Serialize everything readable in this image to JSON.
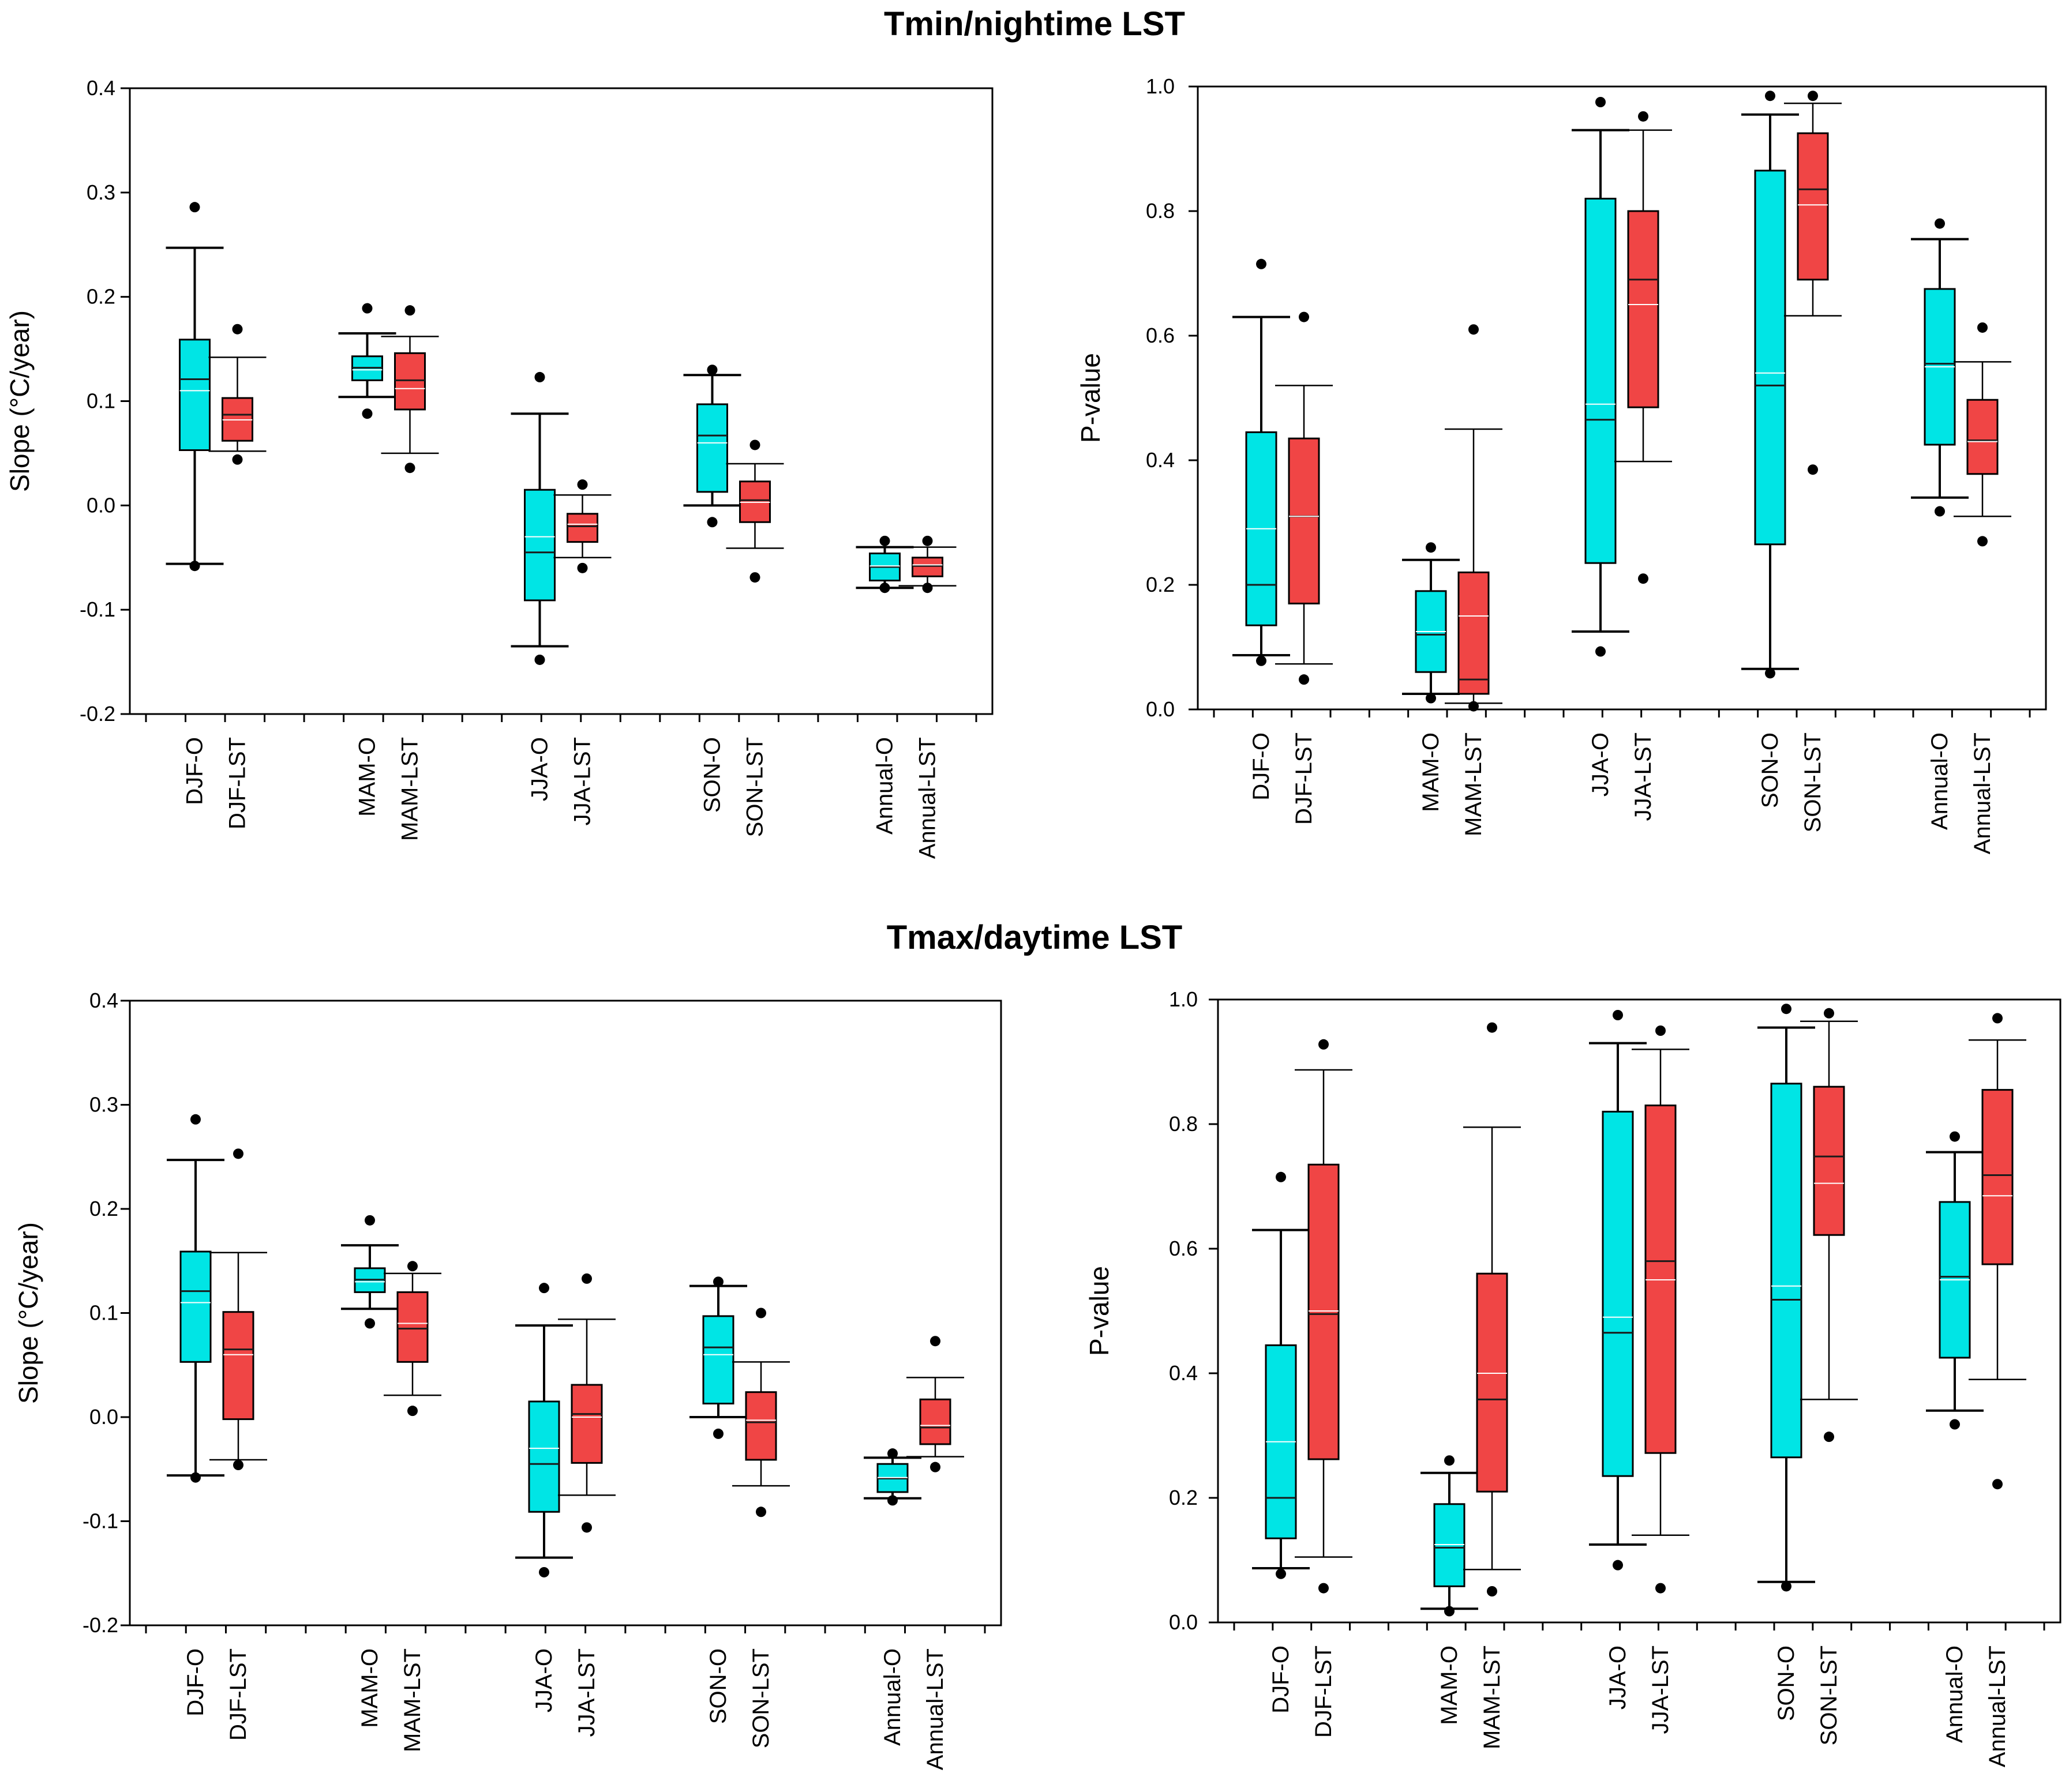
{
  "section_titles": [
    "Tmin/nightime LST",
    "Tmax/daytime LST"
  ],
  "colors": {
    "observed": "#00E5E5",
    "lst": "#F04545",
    "median": "#1A1A1A",
    "mean": "#FFFFFF",
    "outlier": "#000000",
    "axis": "#000000"
  },
  "chart_data": [
    {
      "type": "box",
      "section": "Tmin/nightime LST",
      "ylabel": "Slope (°C/year)",
      "xlabel": "",
      "ylim": [
        -0.2,
        0.4
      ],
      "yticks": [
        -0.2,
        -0.1,
        0.0,
        0.1,
        0.2,
        0.3,
        0.4
      ],
      "ytick_labels": [
        "-0.2",
        "-0.1",
        "0.0",
        "0.1",
        "0.2",
        "0.3",
        "0.4"
      ],
      "categories": [
        "DJF-O",
        "DJF-LST",
        "MAM-O",
        "MAM-LST",
        "JJA-O",
        "JJA-LST",
        "SON-O",
        "SON-LST",
        "Annual-O",
        "Annual-LST"
      ],
      "boxes": [
        {
          "label": "DJF-O",
          "series": "observed",
          "whisker_low": -0.056,
          "q1": 0.053,
          "median": 0.121,
          "mean": 0.11,
          "q3": 0.159,
          "whisker_high": 0.247,
          "outliers": [
            0.286,
            -0.058
          ]
        },
        {
          "label": "DJF-LST",
          "series": "lst",
          "whisker_low": 0.052,
          "q1": 0.062,
          "median": 0.087,
          "mean": 0.082,
          "q3": 0.103,
          "whisker_high": 0.142,
          "outliers": [
            0.169,
            0.044
          ]
        },
        {
          "label": "MAM-O",
          "series": "observed",
          "whisker_low": 0.104,
          "q1": 0.12,
          "median": 0.132,
          "mean": 0.13,
          "q3": 0.143,
          "whisker_high": 0.165,
          "outliers": [
            0.189,
            0.088
          ]
        },
        {
          "label": "MAM-LST",
          "series": "lst",
          "whisker_low": 0.05,
          "q1": 0.092,
          "median": 0.12,
          "mean": 0.112,
          "q3": 0.146,
          "whisker_high": 0.162,
          "outliers": [
            0.187,
            0.036
          ]
        },
        {
          "label": "JJA-O",
          "series": "observed",
          "whisker_low": -0.135,
          "q1": -0.091,
          "median": -0.045,
          "mean": -0.03,
          "q3": 0.015,
          "whisker_high": 0.088,
          "outliers": [
            0.123,
            -0.148
          ]
        },
        {
          "label": "JJA-LST",
          "series": "lst",
          "whisker_low": -0.05,
          "q1": -0.035,
          "median": -0.02,
          "mean": -0.018,
          "q3": -0.008,
          "whisker_high": 0.01,
          "outliers": [
            0.02,
            -0.06
          ]
        },
        {
          "label": "SON-O",
          "series": "observed",
          "whisker_low": 0.0,
          "q1": 0.013,
          "median": 0.067,
          "mean": 0.06,
          "q3": 0.097,
          "whisker_high": 0.125,
          "outliers": [
            0.13,
            -0.016
          ]
        },
        {
          "label": "SON-LST",
          "series": "lst",
          "whisker_low": -0.041,
          "q1": -0.016,
          "median": 0.005,
          "mean": 0.003,
          "q3": 0.023,
          "whisker_high": 0.04,
          "outliers": [
            0.058,
            -0.069
          ]
        },
        {
          "label": "Annual-O",
          "series": "observed",
          "whisker_low": -0.079,
          "q1": -0.072,
          "median": -0.059,
          "mean": -0.058,
          "q3": -0.046,
          "whisker_high": -0.04,
          "outliers": [
            -0.034,
            -0.079
          ]
        },
        {
          "label": "Annual-LST",
          "series": "lst",
          "whisker_low": -0.077,
          "q1": -0.068,
          "median": -0.058,
          "mean": -0.057,
          "q3": -0.05,
          "whisker_high": -0.04,
          "outliers": [
            -0.034,
            -0.079
          ]
        }
      ]
    },
    {
      "type": "box",
      "section": "Tmin/nightime LST",
      "ylabel": "P-value",
      "xlabel": "",
      "ylim": [
        0.0,
        1.0
      ],
      "yticks": [
        0.0,
        0.2,
        0.4,
        0.6,
        0.8,
        1.0
      ],
      "ytick_labels": [
        "0.0",
        "0.2",
        "0.4",
        "0.6",
        "0.8",
        "1.0"
      ],
      "categories": [
        "DJF-O",
        "DJF-LST",
        "MAM-O",
        "MAM-LST",
        "JJA-O",
        "JJA-LST",
        "SON-O",
        "SON-LST",
        "Annual-O",
        "Annual-LST"
      ],
      "boxes": [
        {
          "label": "DJF-O",
          "series": "observed",
          "whisker_low": 0.087,
          "q1": 0.135,
          "median": 0.2,
          "mean": 0.29,
          "q3": 0.445,
          "whisker_high": 0.63,
          "outliers": [
            0.715,
            0.078
          ]
        },
        {
          "label": "DJF-LST",
          "series": "lst",
          "whisker_low": 0.073,
          "q1": 0.17,
          "median": 0.31,
          "mean": 0.31,
          "q3": 0.435,
          "whisker_high": 0.52,
          "outliers": [
            0.63,
            0.048
          ]
        },
        {
          "label": "MAM-O",
          "series": "observed",
          "whisker_low": 0.025,
          "q1": 0.06,
          "median": 0.12,
          "mean": 0.125,
          "q3": 0.19,
          "whisker_high": 0.24,
          "outliers": [
            0.26,
            0.018
          ]
        },
        {
          "label": "MAM-LST",
          "series": "lst",
          "whisker_low": 0.01,
          "q1": 0.025,
          "median": 0.048,
          "mean": 0.15,
          "q3": 0.22,
          "whisker_high": 0.45,
          "outliers": [
            0.61,
            0.005
          ]
        },
        {
          "label": "JJA-O",
          "series": "observed",
          "whisker_low": 0.125,
          "q1": 0.235,
          "median": 0.465,
          "mean": 0.49,
          "q3": 0.82,
          "whisker_high": 0.93,
          "outliers": [
            0.975,
            0.093
          ]
        },
        {
          "label": "JJA-LST",
          "series": "lst",
          "whisker_low": 0.398,
          "q1": 0.485,
          "median": 0.69,
          "mean": 0.65,
          "q3": 0.8,
          "whisker_high": 0.93,
          "outliers": [
            0.952,
            0.21
          ]
        },
        {
          "label": "SON-O",
          "series": "observed",
          "whisker_low": 0.065,
          "q1": 0.265,
          "median": 0.52,
          "mean": 0.54,
          "q3": 0.865,
          "whisker_high": 0.955,
          "outliers": [
            0.985,
            0.058
          ]
        },
        {
          "label": "SON-LST",
          "series": "lst",
          "whisker_low": 0.632,
          "q1": 0.69,
          "median": 0.835,
          "mean": 0.81,
          "q3": 0.925,
          "whisker_high": 0.973,
          "outliers": [
            0.985,
            0.385
          ]
        },
        {
          "label": "Annual-O",
          "series": "observed",
          "whisker_low": 0.34,
          "q1": 0.425,
          "median": 0.555,
          "mean": 0.55,
          "q3": 0.675,
          "whisker_high": 0.755,
          "outliers": [
            0.78,
            0.318
          ]
        },
        {
          "label": "Annual-LST",
          "series": "lst",
          "whisker_low": 0.31,
          "q1": 0.378,
          "median": 0.432,
          "mean": 0.43,
          "q3": 0.497,
          "whisker_high": 0.558,
          "outliers": [
            0.613,
            0.27
          ]
        }
      ]
    },
    {
      "type": "box",
      "section": "Tmax/daytime LST",
      "ylabel": "Slope (°C/year)",
      "xlabel": "",
      "ylim": [
        -0.2,
        0.4
      ],
      "yticks": [
        -0.2,
        -0.1,
        0.0,
        0.1,
        0.2,
        0.3,
        0.4
      ],
      "ytick_labels": [
        "-0.2",
        "-0.1",
        "0.0",
        "0.1",
        "0.2",
        "0.3",
        "0.4"
      ],
      "categories": [
        "DJF-O",
        "DJF-LST",
        "MAM-O",
        "MAM-LST",
        "JJA-O",
        "JJA-LST",
        "SON-O",
        "SON-LST",
        "Annual-O",
        "Annual-LST"
      ],
      "boxes": [
        {
          "label": "DJF-O",
          "series": "observed",
          "whisker_low": -0.056,
          "q1": 0.053,
          "median": 0.121,
          "mean": 0.11,
          "q3": 0.159,
          "whisker_high": 0.247,
          "outliers": [
            0.286,
            -0.058
          ]
        },
        {
          "label": "DJF-LST",
          "series": "lst",
          "whisker_low": -0.041,
          "q1": -0.002,
          "median": 0.065,
          "mean": 0.06,
          "q3": 0.101,
          "whisker_high": 0.158,
          "outliers": [
            0.253,
            -0.046
          ]
        },
        {
          "label": "MAM-O",
          "series": "observed",
          "whisker_low": 0.104,
          "q1": 0.12,
          "median": 0.132,
          "mean": 0.13,
          "q3": 0.143,
          "whisker_high": 0.165,
          "outliers": [
            0.189,
            0.09
          ]
        },
        {
          "label": "MAM-LST",
          "series": "lst",
          "whisker_low": 0.021,
          "q1": 0.053,
          "median": 0.085,
          "mean": 0.09,
          "q3": 0.12,
          "whisker_high": 0.138,
          "outliers": [
            0.145,
            0.006
          ]
        },
        {
          "label": "JJA-O",
          "series": "observed",
          "whisker_low": -0.135,
          "q1": -0.091,
          "median": -0.045,
          "mean": -0.03,
          "q3": 0.015,
          "whisker_high": 0.088,
          "outliers": [
            0.124,
            -0.149
          ]
        },
        {
          "label": "JJA-LST",
          "series": "lst",
          "whisker_low": -0.075,
          "q1": -0.044,
          "median": 0.003,
          "mean": 0.0,
          "q3": 0.031,
          "whisker_high": 0.094,
          "outliers": [
            0.133,
            -0.106
          ]
        },
        {
          "label": "SON-O",
          "series": "observed",
          "whisker_low": 0.0,
          "q1": 0.013,
          "median": 0.067,
          "mean": 0.06,
          "q3": 0.097,
          "whisker_high": 0.126,
          "outliers": [
            0.13,
            -0.016
          ]
        },
        {
          "label": "SON-LST",
          "series": "lst",
          "whisker_low": -0.066,
          "q1": -0.041,
          "median": -0.005,
          "mean": -0.003,
          "q3": 0.024,
          "whisker_high": 0.053,
          "outliers": [
            0.1,
            -0.091
          ]
        },
        {
          "label": "Annual-O",
          "series": "observed",
          "whisker_low": -0.078,
          "q1": -0.072,
          "median": -0.059,
          "mean": -0.058,
          "q3": -0.045,
          "whisker_high": -0.039,
          "outliers": [
            -0.035,
            -0.08
          ]
        },
        {
          "label": "Annual-LST",
          "series": "lst",
          "whisker_low": -0.038,
          "q1": -0.026,
          "median": -0.01,
          "mean": -0.008,
          "q3": 0.017,
          "whisker_high": 0.038,
          "outliers": [
            0.073,
            -0.048
          ]
        }
      ]
    },
    {
      "type": "box",
      "section": "Tmax/daytime LST",
      "ylabel": "P-value",
      "xlabel": "",
      "ylim": [
        0.0,
        1.0
      ],
      "yticks": [
        0.0,
        0.2,
        0.4,
        0.6,
        0.8,
        1.0
      ],
      "ytick_labels": [
        "0.0",
        "0.2",
        "0.4",
        "0.6",
        "0.8",
        "1.0"
      ],
      "categories": [
        "DJF-O",
        "DJF-LST",
        "MAM-O",
        "MAM-LST",
        "JJA-O",
        "JJA-LST",
        "SON-O",
        "SON-LST",
        "Annual-O",
        "Annual-LST"
      ],
      "boxes": [
        {
          "label": "DJF-O",
          "series": "observed",
          "whisker_low": 0.087,
          "q1": 0.135,
          "median": 0.2,
          "mean": 0.29,
          "q3": 0.445,
          "whisker_high": 0.63,
          "outliers": [
            0.715,
            0.078
          ]
        },
        {
          "label": "DJF-LST",
          "series": "lst",
          "whisker_low": 0.105,
          "q1": 0.262,
          "median": 0.495,
          "mean": 0.5,
          "q3": 0.735,
          "whisker_high": 0.887,
          "outliers": [
            0.928,
            0.055
          ]
        },
        {
          "label": "MAM-O",
          "series": "observed",
          "whisker_low": 0.022,
          "q1": 0.058,
          "median": 0.12,
          "mean": 0.125,
          "q3": 0.19,
          "whisker_high": 0.24,
          "outliers": [
            0.26,
            0.018
          ]
        },
        {
          "label": "MAM-LST",
          "series": "lst",
          "whisker_low": 0.085,
          "q1": 0.21,
          "median": 0.358,
          "mean": 0.4,
          "q3": 0.56,
          "whisker_high": 0.795,
          "outliers": [
            0.955,
            0.05
          ]
        },
        {
          "label": "JJA-O",
          "series": "observed",
          "whisker_low": 0.125,
          "q1": 0.235,
          "median": 0.465,
          "mean": 0.49,
          "q3": 0.82,
          "whisker_high": 0.93,
          "outliers": [
            0.975,
            0.092
          ]
        },
        {
          "label": "JJA-LST",
          "series": "lst",
          "whisker_low": 0.14,
          "q1": 0.272,
          "median": 0.58,
          "mean": 0.55,
          "q3": 0.83,
          "whisker_high": 0.92,
          "outliers": [
            0.95,
            0.055
          ]
        },
        {
          "label": "SON-O",
          "series": "observed",
          "whisker_low": 0.065,
          "q1": 0.265,
          "median": 0.518,
          "mean": 0.54,
          "q3": 0.865,
          "whisker_high": 0.955,
          "outliers": [
            0.985,
            0.058
          ]
        },
        {
          "label": "SON-LST",
          "series": "lst",
          "whisker_low": 0.358,
          "q1": 0.622,
          "median": 0.748,
          "mean": 0.705,
          "q3": 0.86,
          "whisker_high": 0.965,
          "outliers": [
            0.978,
            0.298
          ]
        },
        {
          "label": "Annual-O",
          "series": "observed",
          "whisker_low": 0.34,
          "q1": 0.425,
          "median": 0.555,
          "mean": 0.55,
          "q3": 0.675,
          "whisker_high": 0.755,
          "outliers": [
            0.78,
            0.318
          ]
        },
        {
          "label": "Annual-LST",
          "series": "lst",
          "whisker_low": 0.39,
          "q1": 0.575,
          "median": 0.718,
          "mean": 0.685,
          "q3": 0.855,
          "whisker_high": 0.935,
          "outliers": [
            0.97,
            0.222
          ]
        }
      ]
    }
  ]
}
